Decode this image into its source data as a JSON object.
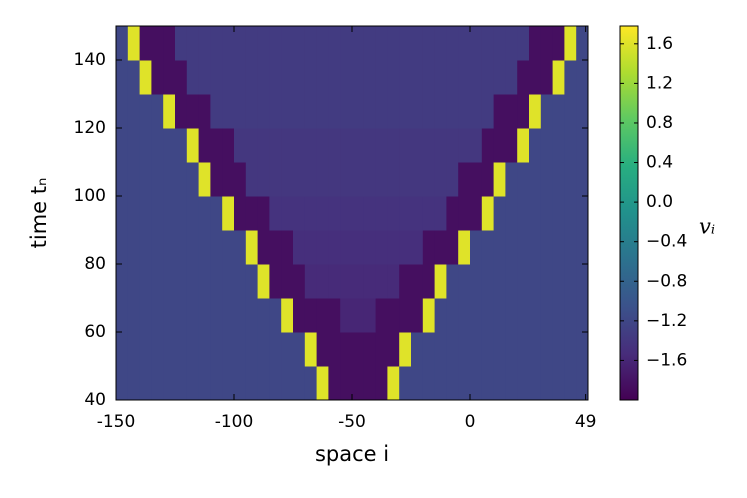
{
  "chart_data": {
    "type": "heatmap",
    "xlabel": "space i",
    "ylabel": "time tₙ",
    "colorbar_label": "vᵢ",
    "colormap": "viridis",
    "xbins": [
      -150,
      -145,
      -140,
      -135,
      -130,
      -125,
      -120,
      -115,
      -110,
      -105,
      -100,
      -95,
      -90,
      -85,
      -80,
      -75,
      -70,
      -65,
      -60,
      -55,
      -50,
      -45,
      -40,
      -35,
      -30,
      -25,
      -20,
      -15,
      -10,
      -5,
      0,
      5,
      10,
      15,
      20,
      25,
      30,
      35,
      40,
      45,
      50
    ],
    "ybins": [
      40,
      50,
      60,
      70,
      80,
      90,
      100,
      110,
      120,
      130,
      140,
      150
    ],
    "z": [
      [
        -1.2,
        -1.2,
        -1.2,
        -1.2,
        -1.2,
        -1.2,
        -1.2,
        -1.2,
        -1.2,
        -1.2,
        -1.2,
        -1.2,
        -1.2,
        -1.2,
        -1.2,
        -1.2,
        -1.2,
        1.6,
        -1.85,
        -1.85,
        -1.85,
        -1.85,
        -1.85,
        1.6,
        -1.2,
        -1.2,
        -1.2,
        -1.2,
        -1.2,
        -1.2,
        -1.2,
        -1.2,
        -1.2,
        -1.2,
        -1.2,
        -1.2,
        -1.2,
        -1.2,
        -1.2,
        -1.2
      ],
      [
        -1.2,
        -1.2,
        -1.2,
        -1.2,
        -1.2,
        -1.2,
        -1.2,
        -1.2,
        -1.2,
        -1.2,
        -1.2,
        -1.2,
        -1.2,
        -1.2,
        -1.2,
        -1.2,
        1.6,
        -1.85,
        -1.85,
        -1.85,
        -1.85,
        -1.85,
        -1.85,
        -1.85,
        1.6,
        -1.2,
        -1.2,
        -1.2,
        -1.2,
        -1.2,
        -1.2,
        -1.2,
        -1.2,
        -1.2,
        -1.2,
        -1.2,
        -1.2,
        -1.2,
        -1.2,
        -1.2
      ],
      [
        -1.2,
        -1.2,
        -1.2,
        -1.2,
        -1.2,
        -1.2,
        -1.2,
        -1.2,
        -1.2,
        -1.2,
        -1.2,
        -1.2,
        -1.2,
        -1.2,
        1.6,
        -1.85,
        -1.85,
        -1.85,
        -1.85,
        -1.6,
        -1.6,
        -1.6,
        -1.85,
        -1.85,
        -1.85,
        -1.85,
        1.6,
        -1.2,
        -1.2,
        -1.2,
        -1.2,
        -1.2,
        -1.2,
        -1.2,
        -1.2,
        -1.2,
        -1.2,
        -1.2,
        -1.2,
        -1.2
      ],
      [
        -1.2,
        -1.2,
        -1.2,
        -1.2,
        -1.2,
        -1.2,
        -1.2,
        -1.2,
        -1.2,
        -1.2,
        -1.2,
        -1.2,
        1.6,
        -1.85,
        -1.85,
        -1.85,
        -1.55,
        -1.55,
        -1.55,
        -1.55,
        -1.55,
        -1.55,
        -1.55,
        -1.55,
        -1.85,
        -1.85,
        -1.85,
        1.6,
        -1.2,
        -1.2,
        -1.2,
        -1.2,
        -1.2,
        -1.2,
        -1.2,
        -1.2,
        -1.2,
        -1.2,
        -1.2,
        -1.2
      ],
      [
        -1.2,
        -1.2,
        -1.2,
        -1.2,
        -1.2,
        -1.2,
        -1.2,
        -1.2,
        -1.2,
        -1.2,
        -1.2,
        1.6,
        -1.85,
        -1.85,
        -1.85,
        -1.5,
        -1.5,
        -1.5,
        -1.5,
        -1.5,
        -1.5,
        -1.5,
        -1.5,
        -1.5,
        -1.5,
        -1.5,
        -1.85,
        -1.85,
        -1.85,
        1.6,
        -1.2,
        -1.2,
        -1.2,
        -1.2,
        -1.2,
        -1.2,
        -1.2,
        -1.2,
        -1.2,
        -1.2
      ],
      [
        -1.2,
        -1.2,
        -1.2,
        -1.2,
        -1.2,
        -1.2,
        -1.2,
        -1.2,
        -1.2,
        1.6,
        -1.85,
        -1.85,
        -1.85,
        -1.45,
        -1.45,
        -1.45,
        -1.45,
        -1.45,
        -1.45,
        -1.45,
        -1.45,
        -1.45,
        -1.45,
        -1.45,
        -1.45,
        -1.45,
        -1.45,
        -1.45,
        -1.85,
        -1.85,
        -1.85,
        1.6,
        -1.2,
        -1.2,
        -1.2,
        -1.2,
        -1.2,
        -1.2,
        -1.2,
        -1.2
      ],
      [
        -1.2,
        -1.2,
        -1.2,
        -1.2,
        -1.2,
        -1.2,
        -1.2,
        1.6,
        -1.85,
        -1.85,
        -1.85,
        -1.4,
        -1.4,
        -1.4,
        -1.4,
        -1.4,
        -1.4,
        -1.4,
        -1.4,
        -1.4,
        -1.4,
        -1.4,
        -1.4,
        -1.4,
        -1.4,
        -1.4,
        -1.4,
        -1.4,
        -1.4,
        -1.85,
        -1.85,
        -1.85,
        1.6,
        -1.2,
        -1.2,
        -1.2,
        -1.2,
        -1.2,
        -1.2,
        -1.2
      ],
      [
        -1.2,
        -1.2,
        -1.2,
        -1.2,
        -1.2,
        -1.2,
        1.6,
        -1.85,
        -1.85,
        -1.85,
        -1.4,
        -1.4,
        -1.4,
        -1.4,
        -1.4,
        -1.4,
        -1.4,
        -1.4,
        -1.4,
        -1.4,
        -1.4,
        -1.4,
        -1.4,
        -1.4,
        -1.4,
        -1.4,
        -1.4,
        -1.4,
        -1.4,
        -1.4,
        -1.4,
        -1.85,
        -1.85,
        -1.85,
        1.6,
        -1.2,
        -1.2,
        -1.2,
        -1.2,
        -1.2
      ],
      [
        -1.2,
        -1.2,
        -1.2,
        -1.2,
        1.6,
        -1.85,
        -1.85,
        -1.85,
        -1.35,
        -1.35,
        -1.35,
        -1.35,
        -1.35,
        -1.35,
        -1.35,
        -1.35,
        -1.35,
        -1.35,
        -1.35,
        -1.35,
        -1.35,
        -1.35,
        -1.35,
        -1.35,
        -1.35,
        -1.35,
        -1.35,
        -1.35,
        -1.35,
        -1.35,
        -1.35,
        -1.35,
        -1.85,
        -1.85,
        -1.85,
        1.6,
        -1.2,
        -1.2,
        -1.2,
        -1.2
      ],
      [
        -1.2,
        -1.2,
        1.6,
        -1.85,
        -1.85,
        -1.85,
        -1.35,
        -1.35,
        -1.35,
        -1.35,
        -1.35,
        -1.35,
        -1.35,
        -1.35,
        -1.35,
        -1.35,
        -1.35,
        -1.35,
        -1.35,
        -1.35,
        -1.35,
        -1.35,
        -1.35,
        -1.35,
        -1.35,
        -1.35,
        -1.35,
        -1.35,
        -1.35,
        -1.35,
        -1.35,
        -1.35,
        -1.35,
        -1.35,
        -1.85,
        -1.85,
        -1.85,
        1.6,
        -1.2,
        -1.2
      ],
      [
        -1.2,
        1.6,
        -1.85,
        -1.85,
        -1.85,
        -1.35,
        -1.35,
        -1.35,
        -1.35,
        -1.35,
        -1.35,
        -1.35,
        -1.35,
        -1.35,
        -1.35,
        -1.35,
        -1.35,
        -1.35,
        -1.35,
        -1.35,
        -1.35,
        -1.35,
        -1.35,
        -1.35,
        -1.35,
        -1.35,
        -1.35,
        -1.35,
        -1.35,
        -1.35,
        -1.35,
        -1.35,
        -1.35,
        -1.35,
        -1.35,
        -1.85,
        -1.85,
        -1.85,
        1.6,
        -1.2
      ]
    ],
    "xlim": [
      -150,
      50
    ],
    "ylim": [
      40,
      150
    ],
    "xticks": [
      -150,
      -100,
      -50,
      0,
      49
    ],
    "yticks": [
      40,
      60,
      80,
      100,
      120,
      140
    ],
    "clim": [
      -2.0,
      1.78
    ],
    "cticks": [
      {
        "value": -1.6,
        "label": "−1.6"
      },
      {
        "value": -1.2,
        "label": "−1.2"
      },
      {
        "value": -0.8,
        "label": "−0.8"
      },
      {
        "value": -0.4,
        "label": "−0.4"
      },
      {
        "value": 0,
        "label": "0.0"
      },
      0.4,
      0.8,
      1.2,
      1.6
    ]
  }
}
